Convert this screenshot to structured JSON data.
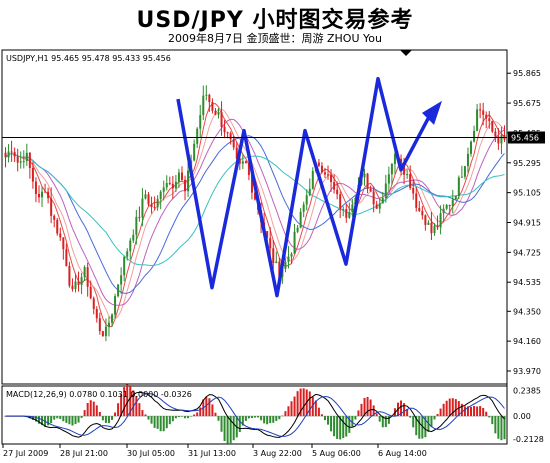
{
  "header": {
    "title": "USD/JPY  小时图交易参考",
    "subtitle": "2009年8月7日   金顶盛世：周游 ZHOU You"
  },
  "chart_data": [
    {
      "type": "candlestick",
      "symbol_label": "USDJPY,H1  95.465 95.478 95.433 95.456",
      "current_price_label": "95.456",
      "current_price": 95.456,
      "ylim": [
        93.9,
        96.0
      ],
      "y_ticks": [
        "95.865",
        "95.675",
        "95.485",
        "95.295",
        "95.105",
        "94.915",
        "94.725",
        "94.535",
        "94.350",
        "94.160",
        "93.970"
      ],
      "y_tick_values": [
        95.865,
        95.675,
        95.485,
        95.295,
        95.105,
        94.915,
        94.725,
        94.535,
        94.35,
        94.16,
        93.97
      ],
      "x_ticks": [
        "27 Jul 2009",
        "28 Jul 21:00",
        "30 Jul 05:00",
        "31 Jul 13:00",
        "3 Aug 22:00",
        "5 Aug 06:00",
        "6 Aug 14:00"
      ],
      "close_path": [
        95.33,
        95.4,
        95.28,
        95.36,
        95.2,
        95.05,
        95.15,
        94.95,
        94.85,
        94.7,
        94.45,
        94.55,
        94.6,
        94.4,
        94.25,
        94.2,
        94.35,
        94.55,
        94.7,
        94.85,
        94.95,
        95.1,
        95.0,
        95.05,
        95.2,
        95.15,
        95.25,
        95.1,
        95.35,
        95.55,
        95.75,
        95.65,
        95.6,
        95.5,
        95.4,
        95.25,
        95.3,
        95.15,
        95.0,
        94.85,
        94.7,
        94.6,
        94.65,
        94.75,
        94.9,
        95.05,
        95.2,
        95.3,
        95.25,
        95.15,
        95.05,
        94.95,
        95.05,
        95.15,
        95.2,
        95.1,
        95.0,
        95.15,
        95.3,
        95.35,
        95.25,
        95.15,
        95.0,
        94.95,
        94.85,
        94.9,
        95.0,
        95.05,
        95.15,
        95.3,
        95.45,
        95.65,
        95.6,
        95.5,
        95.45,
        95.43
      ]
    },
    {
      "type": "macd",
      "label": "MACD(12,26,9)  0.0780  0.1031  0.0000  -0.0326",
      "ylim": [
        -0.24,
        0.26
      ],
      "y_ticks": [
        "0.2385",
        "0.00",
        "-0.2128"
      ],
      "y_tick_values": [
        0.2385,
        0.0,
        -0.2128
      ]
    }
  ],
  "annotation": {
    "color": "#1a2adb",
    "forecast_path": [
      {
        "i": 0,
        "p": 95.7
      },
      {
        "i": 1,
        "p": 94.5
      },
      {
        "i": 2,
        "p": 95.5
      },
      {
        "i": 3,
        "p": 94.45
      },
      {
        "i": 4,
        "p": 95.5
      },
      {
        "i": 5,
        "p": 94.65
      },
      {
        "i": 6,
        "p": 95.83
      },
      {
        "i": 7,
        "p": 95.25
      },
      {
        "i": 8,
        "p": 95.6
      }
    ]
  },
  "colors": {
    "bull": "#2e8b2e",
    "bear": "#d82020",
    "ma_red": "#e84a4a",
    "ma_pink": "#f2a0a0",
    "ma_blue": "#4a6bd8",
    "ma_cyan": "#3ac0c0",
    "ma_purple": "#c060c0"
  }
}
